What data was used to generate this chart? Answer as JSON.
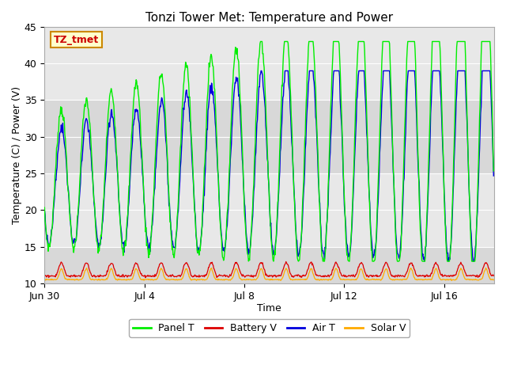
{
  "title": "Tonzi Tower Met: Temperature and Power",
  "xlabel": "Time",
  "ylabel": "Temperature (C) / Power (V)",
  "ylim": [
    10,
    45
  ],
  "num_days": 18,
  "xtick_labels": [
    "Jun 30",
    "Jul 4",
    "Jul 8",
    "Jul 12",
    "Jul 16"
  ],
  "xtick_days": [
    0,
    4,
    8,
    12,
    16
  ],
  "panel_t_color": "#00ee00",
  "battery_v_color": "#dd0000",
  "air_t_color": "#0000dd",
  "solar_v_color": "#ffaa00",
  "annotation_text": "TZ_tmet",
  "annotation_bg": "#ffffcc",
  "annotation_border": "#cc8800",
  "legend_labels": [
    "Panel T",
    "Battery V",
    "Air T",
    "Solar V"
  ],
  "fig_bg": "#ffffff",
  "ax_bg": "#f0f0f0",
  "band1_ymin": 35,
  "band1_ymax": 45,
  "band2_ymin": 10,
  "band2_ymax": 20
}
